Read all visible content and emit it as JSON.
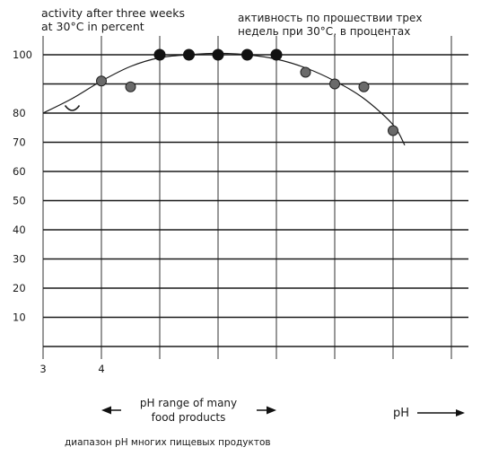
{
  "chart_data": {
    "type": "scatter",
    "title_en": [
      "activity after three weeks",
      "at 30°C in percent"
    ],
    "title_ru": [
      "активность по прошествии трех",
      "недель при 30°C, в процентах"
    ],
    "ylabel": "",
    "xlabel": "pH",
    "y_ticks": [
      "100",
      "80",
      "70",
      "60",
      "50",
      "40",
      "30",
      "20",
      "10"
    ],
    "y_tick_values": [
      100,
      80,
      70,
      60,
      50,
      40,
      30,
      20,
      10
    ],
    "x_ticks": [
      "3",
      "4"
    ],
    "x_tick_values": [
      3,
      4
    ],
    "ylim": [
      0,
      100
    ],
    "xlim": [
      3,
      10
    ],
    "grid": true,
    "points": [
      {
        "x": 3.5,
        "y": 82,
        "style": "open"
      },
      {
        "x": 4.0,
        "y": 91,
        "style": "shaded"
      },
      {
        "x": 4.5,
        "y": 89,
        "style": "shaded"
      },
      {
        "x": 5.0,
        "y": 100,
        "style": "solid"
      },
      {
        "x": 5.5,
        "y": 100,
        "style": "solid"
      },
      {
        "x": 6.0,
        "y": 100,
        "style": "solid"
      },
      {
        "x": 6.5,
        "y": 100,
        "style": "solid"
      },
      {
        "x": 7.0,
        "y": 100,
        "style": "solid"
      },
      {
        "x": 7.5,
        "y": 94,
        "style": "shaded"
      },
      {
        "x": 8.0,
        "y": 90,
        "style": "shaded"
      },
      {
        "x": 8.5,
        "y": 89,
        "style": "shaded"
      },
      {
        "x": 9.0,
        "y": 74,
        "style": "shaded"
      }
    ],
    "curve": [
      {
        "x": 3.0,
        "y": 80
      },
      {
        "x": 3.5,
        "y": 85
      },
      {
        "x": 4.0,
        "y": 91
      },
      {
        "x": 4.5,
        "y": 96
      },
      {
        "x": 5.0,
        "y": 99
      },
      {
        "x": 5.5,
        "y": 100
      },
      {
        "x": 6.0,
        "y": 100.5
      },
      {
        "x": 6.5,
        "y": 100
      },
      {
        "x": 7.0,
        "y": 98.5
      },
      {
        "x": 7.5,
        "y": 95.5
      },
      {
        "x": 8.0,
        "y": 91
      },
      {
        "x": 8.5,
        "y": 85
      },
      {
        "x": 9.0,
        "y": 76
      },
      {
        "x": 9.2,
        "y": 69
      }
    ],
    "range_label_en": [
      "pH range of many",
      "food products"
    ],
    "range_label_ru": "диапазон рН многих пищевых продуктов",
    "range_x": [
      4,
      7
    ]
  }
}
